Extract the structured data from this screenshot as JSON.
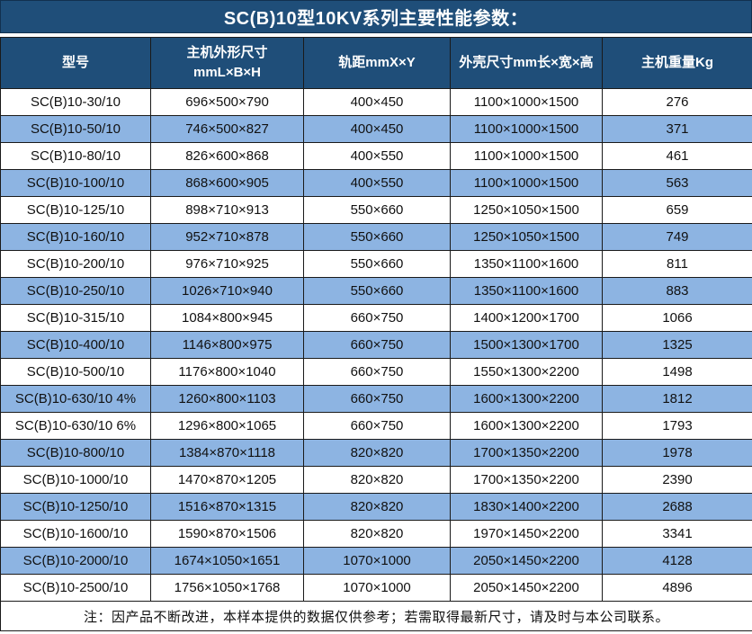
{
  "chart_data": {
    "type": "table",
    "title": "SC(B)10型10KV系列主要性能参数：",
    "columns": [
      {
        "label": "型号",
        "sublabel": ""
      },
      {
        "label": "主机外形尺寸",
        "sublabel": "mmL×B×H"
      },
      {
        "label": "轨距mmX×Y",
        "sublabel": ""
      },
      {
        "label": "外壳尺寸mm长×宽×高",
        "sublabel": ""
      },
      {
        "label": "主机重量Kg",
        "sublabel": ""
      }
    ],
    "rows": [
      [
        "SC(B)10-30/10",
        "696×500×790",
        "400×450",
        "1100×1000×1500",
        "276"
      ],
      [
        "SC(B)10-50/10",
        "746×500×827",
        "400×450",
        "1100×1000×1500",
        "371"
      ],
      [
        "SC(B)10-80/10",
        "826×600×868",
        "400×550",
        "1100×1000×1500",
        "461"
      ],
      [
        "SC(B)10-100/10",
        "868×600×905",
        "400×550",
        "1100×1000×1500",
        "563"
      ],
      [
        "SC(B)10-125/10",
        "898×710×913",
        "550×660",
        "1250×1050×1500",
        "659"
      ],
      [
        "SC(B)10-160/10",
        "952×710×878",
        "550×660",
        "1250×1050×1500",
        "749"
      ],
      [
        "SC(B)10-200/10",
        "976×710×925",
        "550×660",
        "1350×1100×1600",
        "811"
      ],
      [
        "SC(B)10-250/10",
        "1026×710×940",
        "550×660",
        "1350×1100×1600",
        "883"
      ],
      [
        "SC(B)10-315/10",
        "1084×800×945",
        "660×750",
        "1400×1200×1700",
        "1066"
      ],
      [
        "SC(B)10-400/10",
        "1146×800×975",
        "660×750",
        "1500×1300×1700",
        "1325"
      ],
      [
        "SC(B)10-500/10",
        "1176×800×1040",
        "660×750",
        "1550×1300×2200",
        "1498"
      ],
      [
        "SC(B)10-630/10 4%",
        "1260×800×1103",
        "660×750",
        "1600×1300×2200",
        "1812"
      ],
      [
        "SC(B)10-630/10 6%",
        "1296×800×1065",
        "660×750",
        "1600×1300×2200",
        "1793"
      ],
      [
        "SC(B)10-800/10",
        "1384×870×1118",
        "820×820",
        "1700×1350×2200",
        "1978"
      ],
      [
        "SC(B)10-1000/10",
        "1470×870×1205",
        "820×820",
        "1700×1350×2200",
        "2390"
      ],
      [
        "SC(B)10-1250/10",
        "1516×870×1315",
        "820×820",
        "1830×1400×2200",
        "2688"
      ],
      [
        "SC(B)10-1600/10",
        "1590×870×1506",
        "820×820",
        "1970×1450×2200",
        "3341"
      ],
      [
        "SC(B)10-2000/10",
        "1674×1050×1651",
        "1070×1000",
        "2050×1450×2200",
        "4128"
      ],
      [
        "SC(B)10-2500/10",
        "1756×1050×1768",
        "1070×1000",
        "2050×1450×2200",
        "4896"
      ]
    ],
    "note": "注：因产品不断改进，本样本提供的数据仅供参考；若需取得最新尺寸，请及时与本公司联系。",
    "layout": {
      "alternating_rows": true,
      "first_data_row_background": "white",
      "header_position": "top",
      "note_position": "bottom"
    }
  },
  "colors": {
    "header_bg": "#1F4E79",
    "row_alt_bg": "#8DB4E2",
    "row_bg": "#FFFFFF",
    "border": "#1a1a1a",
    "header_text": "#FFFFFF",
    "cell_text": "#111111"
  }
}
